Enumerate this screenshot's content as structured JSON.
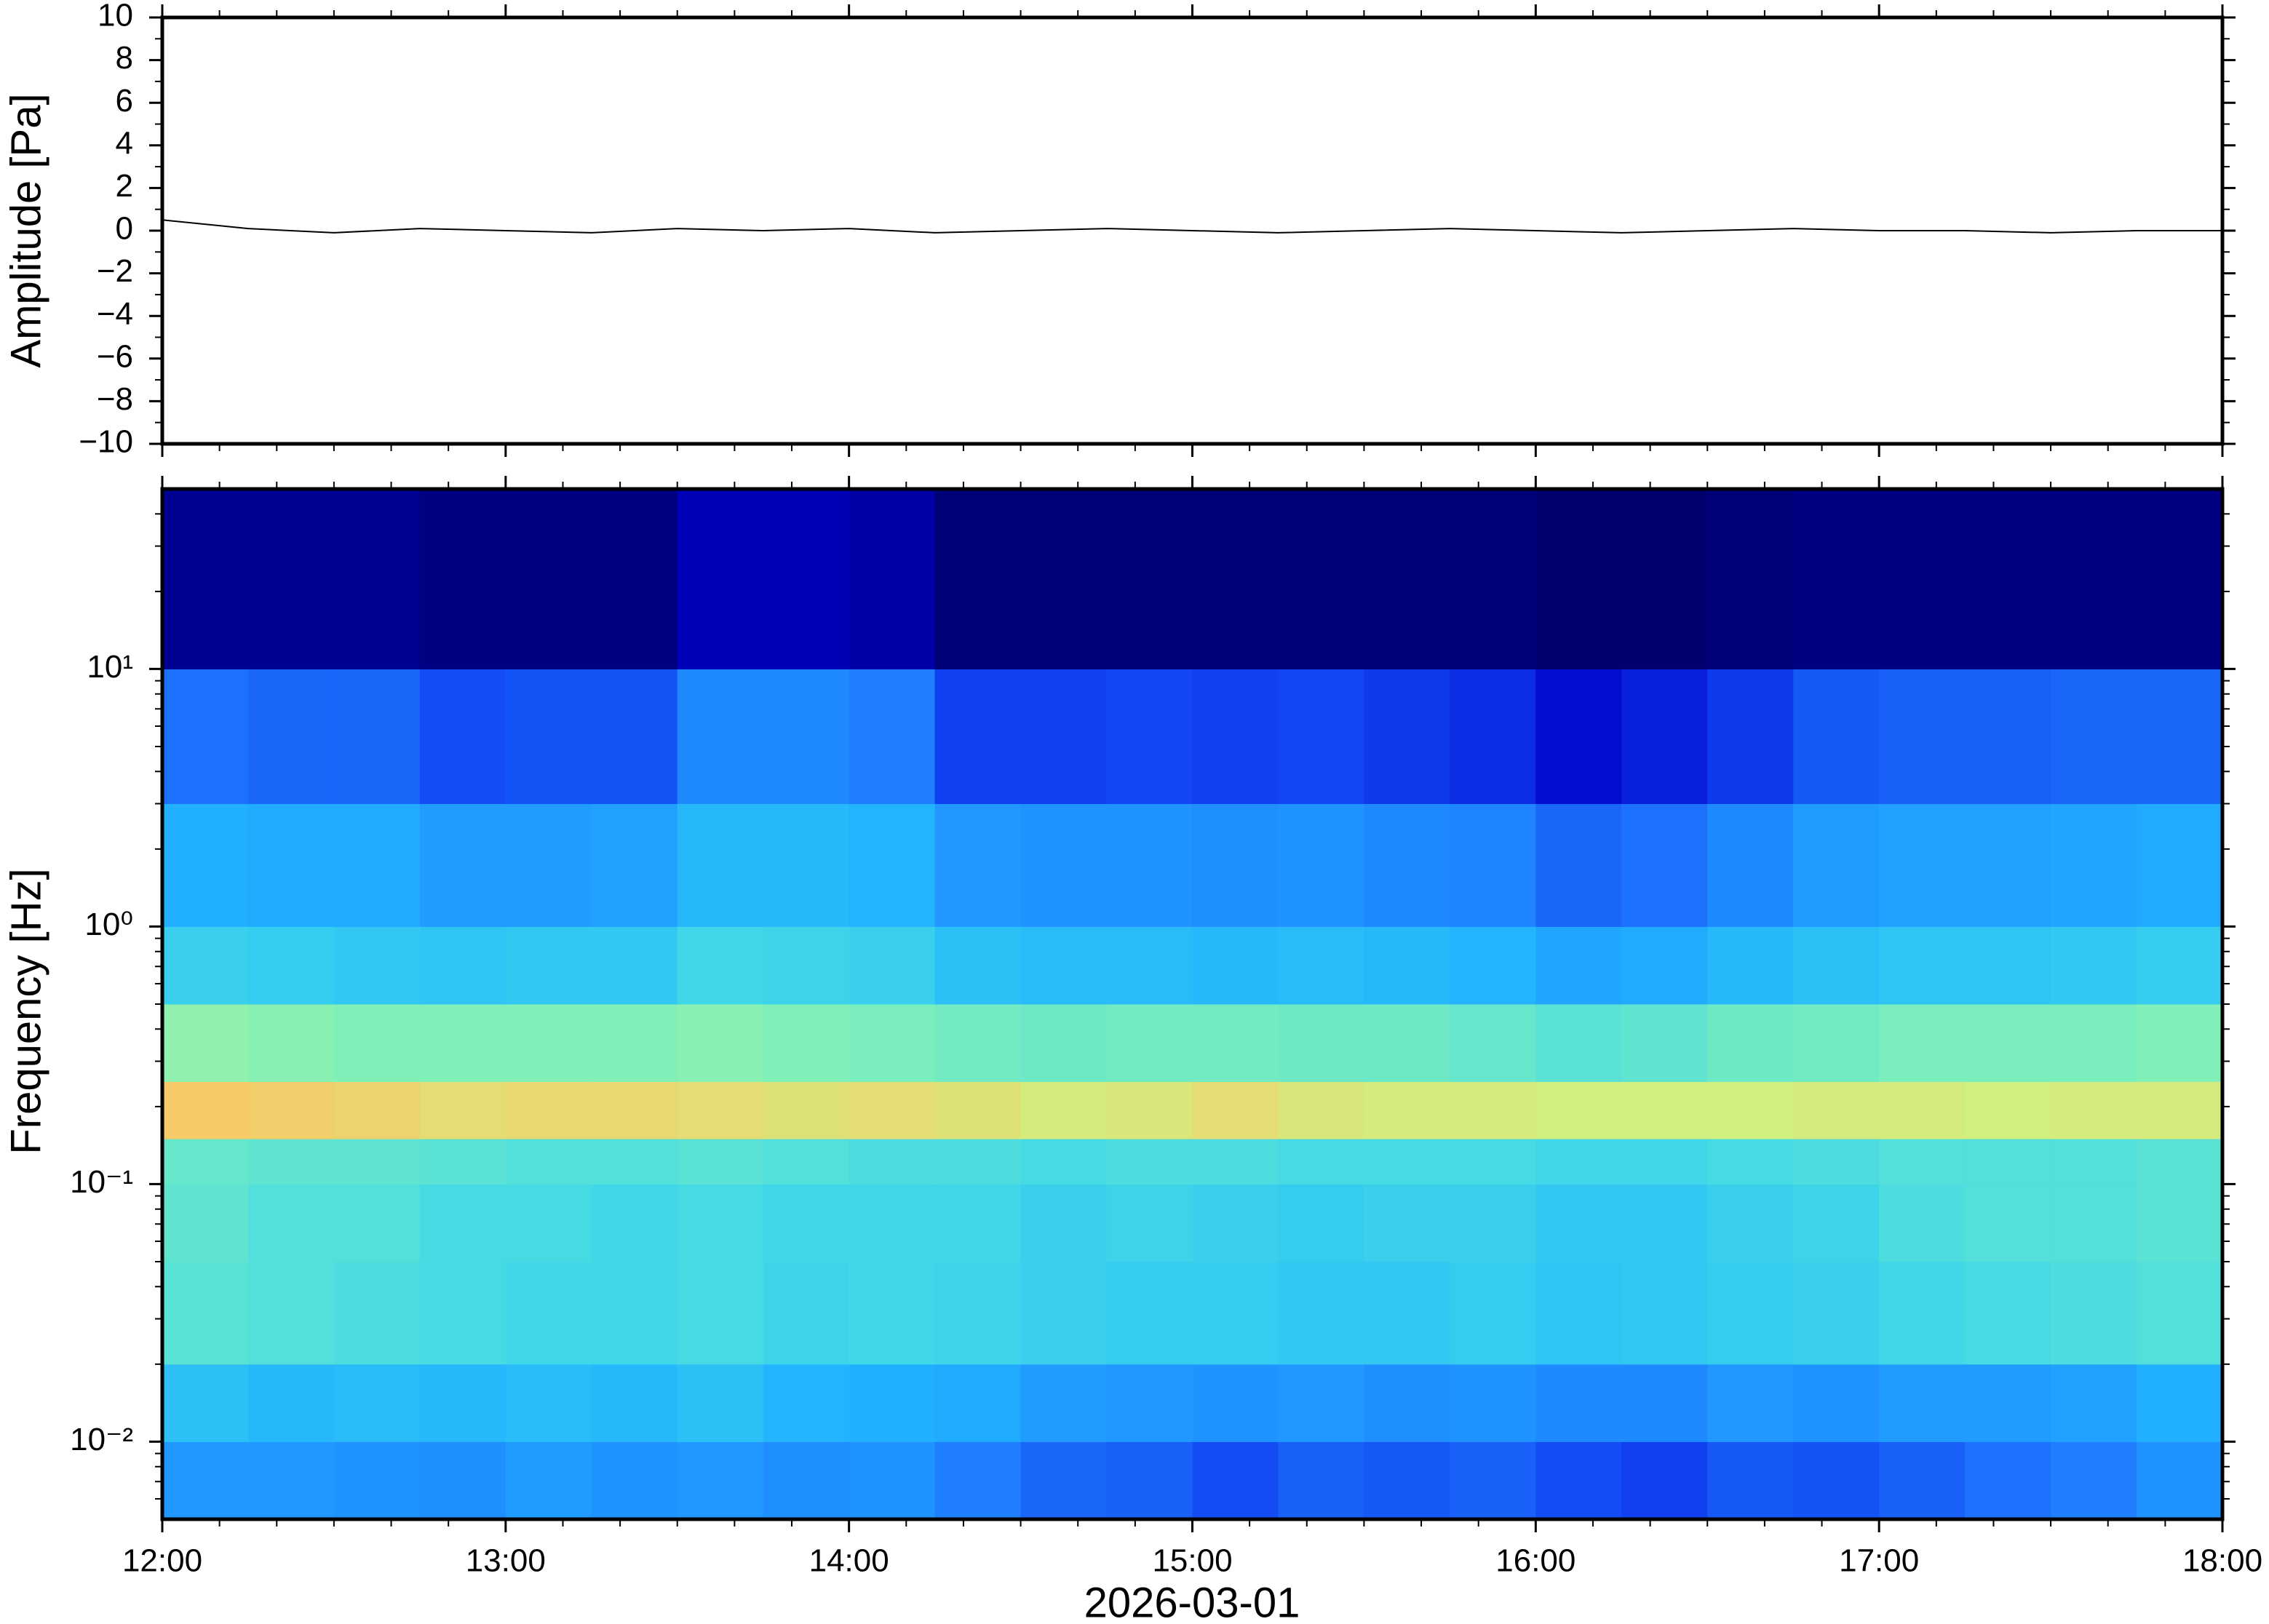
{
  "chart_data": [
    {
      "type": "line",
      "ylabel": "Amplitude [Pa]",
      "color": "#000000",
      "x": [
        12,
        12.25,
        12.5,
        12.75,
        13,
        13.25,
        13.5,
        13.75,
        14,
        14.25,
        14.5,
        14.75,
        15,
        15.25,
        15.5,
        15.75,
        16,
        16.25,
        16.5,
        16.75,
        17,
        17.25,
        17.5,
        17.75,
        18
      ],
      "values": [
        0.5,
        0.1,
        -0.1,
        0.1,
        0,
        -0.1,
        0.1,
        0,
        0.1,
        -0.1,
        0,
        0.1,
        0,
        -0.1,
        0,
        0.1,
        0,
        -0.1,
        0,
        0.1,
        0,
        0,
        -0.1,
        0,
        0
      ],
      "xlim": [
        12,
        18
      ],
      "xticks": [
        12,
        13,
        14,
        15,
        16,
        17,
        18
      ],
      "ylim": [
        -10,
        10
      ],
      "yticks": [
        {
          "value": -10,
          "label": "−10"
        },
        {
          "value": -8,
          "label": "−8"
        },
        {
          "value": -6,
          "label": "−6"
        },
        {
          "value": -4,
          "label": "−4"
        },
        {
          "value": -2,
          "label": "−2"
        },
        0,
        2,
        4,
        6,
        8,
        10
      ]
    },
    {
      "type": "heatmap",
      "ylabel": "Frequency [Hz]",
      "xlabel": "2026-03-01",
      "log_y": true,
      "xlim": [
        12,
        18
      ],
      "xticks": [
        {
          "value": 12,
          "label": "12:00"
        },
        {
          "value": 13,
          "label": "13:00"
        },
        {
          "value": 14,
          "label": "14:00"
        },
        {
          "value": 15,
          "label": "15:00"
        },
        {
          "value": 16,
          "label": "16:00"
        },
        {
          "value": 17,
          "label": "17:00"
        },
        {
          "value": 18,
          "label": "18:00"
        }
      ],
      "ylim": [
        0.005,
        50
      ],
      "yticks": [
        {
          "value": 0.01,
          "label": "10⁻²"
        },
        {
          "value": 0.1,
          "label": "10⁻¹"
        },
        {
          "value": 1,
          "label": "10⁰"
        },
        {
          "value": 10,
          "label": "10¹"
        }
      ],
      "time_edges": [
        12,
        12.25,
        12.5,
        12.75,
        13,
        13.25,
        13.5,
        13.75,
        14,
        14.25,
        14.5,
        14.75,
        15,
        15.25,
        15.5,
        15.75,
        16,
        16.25,
        16.5,
        16.75,
        17,
        17.25,
        17.5,
        17.75,
        18
      ],
      "freq_edges": [
        0.005,
        0.01,
        0.02,
        0.05,
        0.1,
        0.15,
        0.25,
        0.5,
        1,
        3,
        10,
        50
      ],
      "zlim": [
        0,
        9
      ],
      "colormap": [
        "#00006e",
        "#0000c8",
        "#1040f0",
        "#1f7fff",
        "#20b0ff",
        "#40d8e8",
        "#80f0b8",
        "#d0f080",
        "#ffc060",
        "#ff8030"
      ],
      "z": [
        [
          3.5,
          3.5,
          3.4,
          3.3,
          3.6,
          3.4,
          3.5,
          3.3,
          3.4,
          3.0,
          2.6,
          2.5,
          2.2,
          2.5,
          2.4,
          2.5,
          2.2,
          2.0,
          2.4,
          2.3,
          2.5,
          2.8,
          3.0,
          3.4
        ],
        [
          4.4,
          4.2,
          4.3,
          4.2,
          4.3,
          4.2,
          4.4,
          4.1,
          4.0,
          3.9,
          3.6,
          3.5,
          3.4,
          3.5,
          3.3,
          3.4,
          3.2,
          3.2,
          3.5,
          3.4,
          3.6,
          3.6,
          3.7,
          4.0
        ],
        [
          5.4,
          5.3,
          5.2,
          5.1,
          5.0,
          5.0,
          5.1,
          4.9,
          5.0,
          4.9,
          4.8,
          4.7,
          4.7,
          4.6,
          4.6,
          4.7,
          4.5,
          4.6,
          4.7,
          4.8,
          5.0,
          5.1,
          5.2,
          5.3
        ],
        [
          5.5,
          5.3,
          5.3,
          5.1,
          5.1,
          5.0,
          5.1,
          5.0,
          5.0,
          5.0,
          4.8,
          4.9,
          4.8,
          4.7,
          4.8,
          4.8,
          4.6,
          4.6,
          4.8,
          4.9,
          5.2,
          5.3,
          5.3,
          5.4
        ],
        [
          5.6,
          5.5,
          5.5,
          5.4,
          5.3,
          5.3,
          5.4,
          5.3,
          5.2,
          5.2,
          5.1,
          5.2,
          5.2,
          5.1,
          5.1,
          5.1,
          5.0,
          5.0,
          5.1,
          5.2,
          5.3,
          5.3,
          5.3,
          5.4
        ],
        [
          7.8,
          7.7,
          7.6,
          7.4,
          7.5,
          7.5,
          7.4,
          7.3,
          7.4,
          7.3,
          7.1,
          7.2,
          7.4,
          7.2,
          7.1,
          7.1,
          7.0,
          7.0,
          7.0,
          7.1,
          7.1,
          7.0,
          7.1,
          7.1
        ],
        [
          6.2,
          6.1,
          6.0,
          6.0,
          6.0,
          6.0,
          6.1,
          6.0,
          5.9,
          5.8,
          5.7,
          5.8,
          5.8,
          5.7,
          5.7,
          5.6,
          5.4,
          5.5,
          5.7,
          5.8,
          5.9,
          5.9,
          5.9,
          6.0
        ],
        [
          4.8,
          4.7,
          4.6,
          4.5,
          4.6,
          4.6,
          5.0,
          4.9,
          4.8,
          4.4,
          4.3,
          4.3,
          4.2,
          4.3,
          4.2,
          4.1,
          3.8,
          3.9,
          4.2,
          4.4,
          4.5,
          4.5,
          4.6,
          4.7
        ],
        [
          4.0,
          3.9,
          3.9,
          3.6,
          3.6,
          3.7,
          4.2,
          4.2,
          4.1,
          3.5,
          3.4,
          3.4,
          3.3,
          3.4,
          3.2,
          3.1,
          2.6,
          2.8,
          3.2,
          3.6,
          3.7,
          3.7,
          3.8,
          3.9
        ],
        [
          2.8,
          2.6,
          2.6,
          2.2,
          2.3,
          2.3,
          3.2,
          3.2,
          3.0,
          2.0,
          2.0,
          2.1,
          2.0,
          2.1,
          1.9,
          1.7,
          1.2,
          1.5,
          1.9,
          2.4,
          2.5,
          2.5,
          2.6,
          2.6
        ],
        [
          0.4,
          0.4,
          0.4,
          0.2,
          0.2,
          0.2,
          0.8,
          0.8,
          0.6,
          0.1,
          0.1,
          0.1,
          0.1,
          0.1,
          0.1,
          0.1,
          0,
          0,
          0.1,
          0.2,
          0.2,
          0.2,
          0.2,
          0.2
        ]
      ]
    }
  ]
}
